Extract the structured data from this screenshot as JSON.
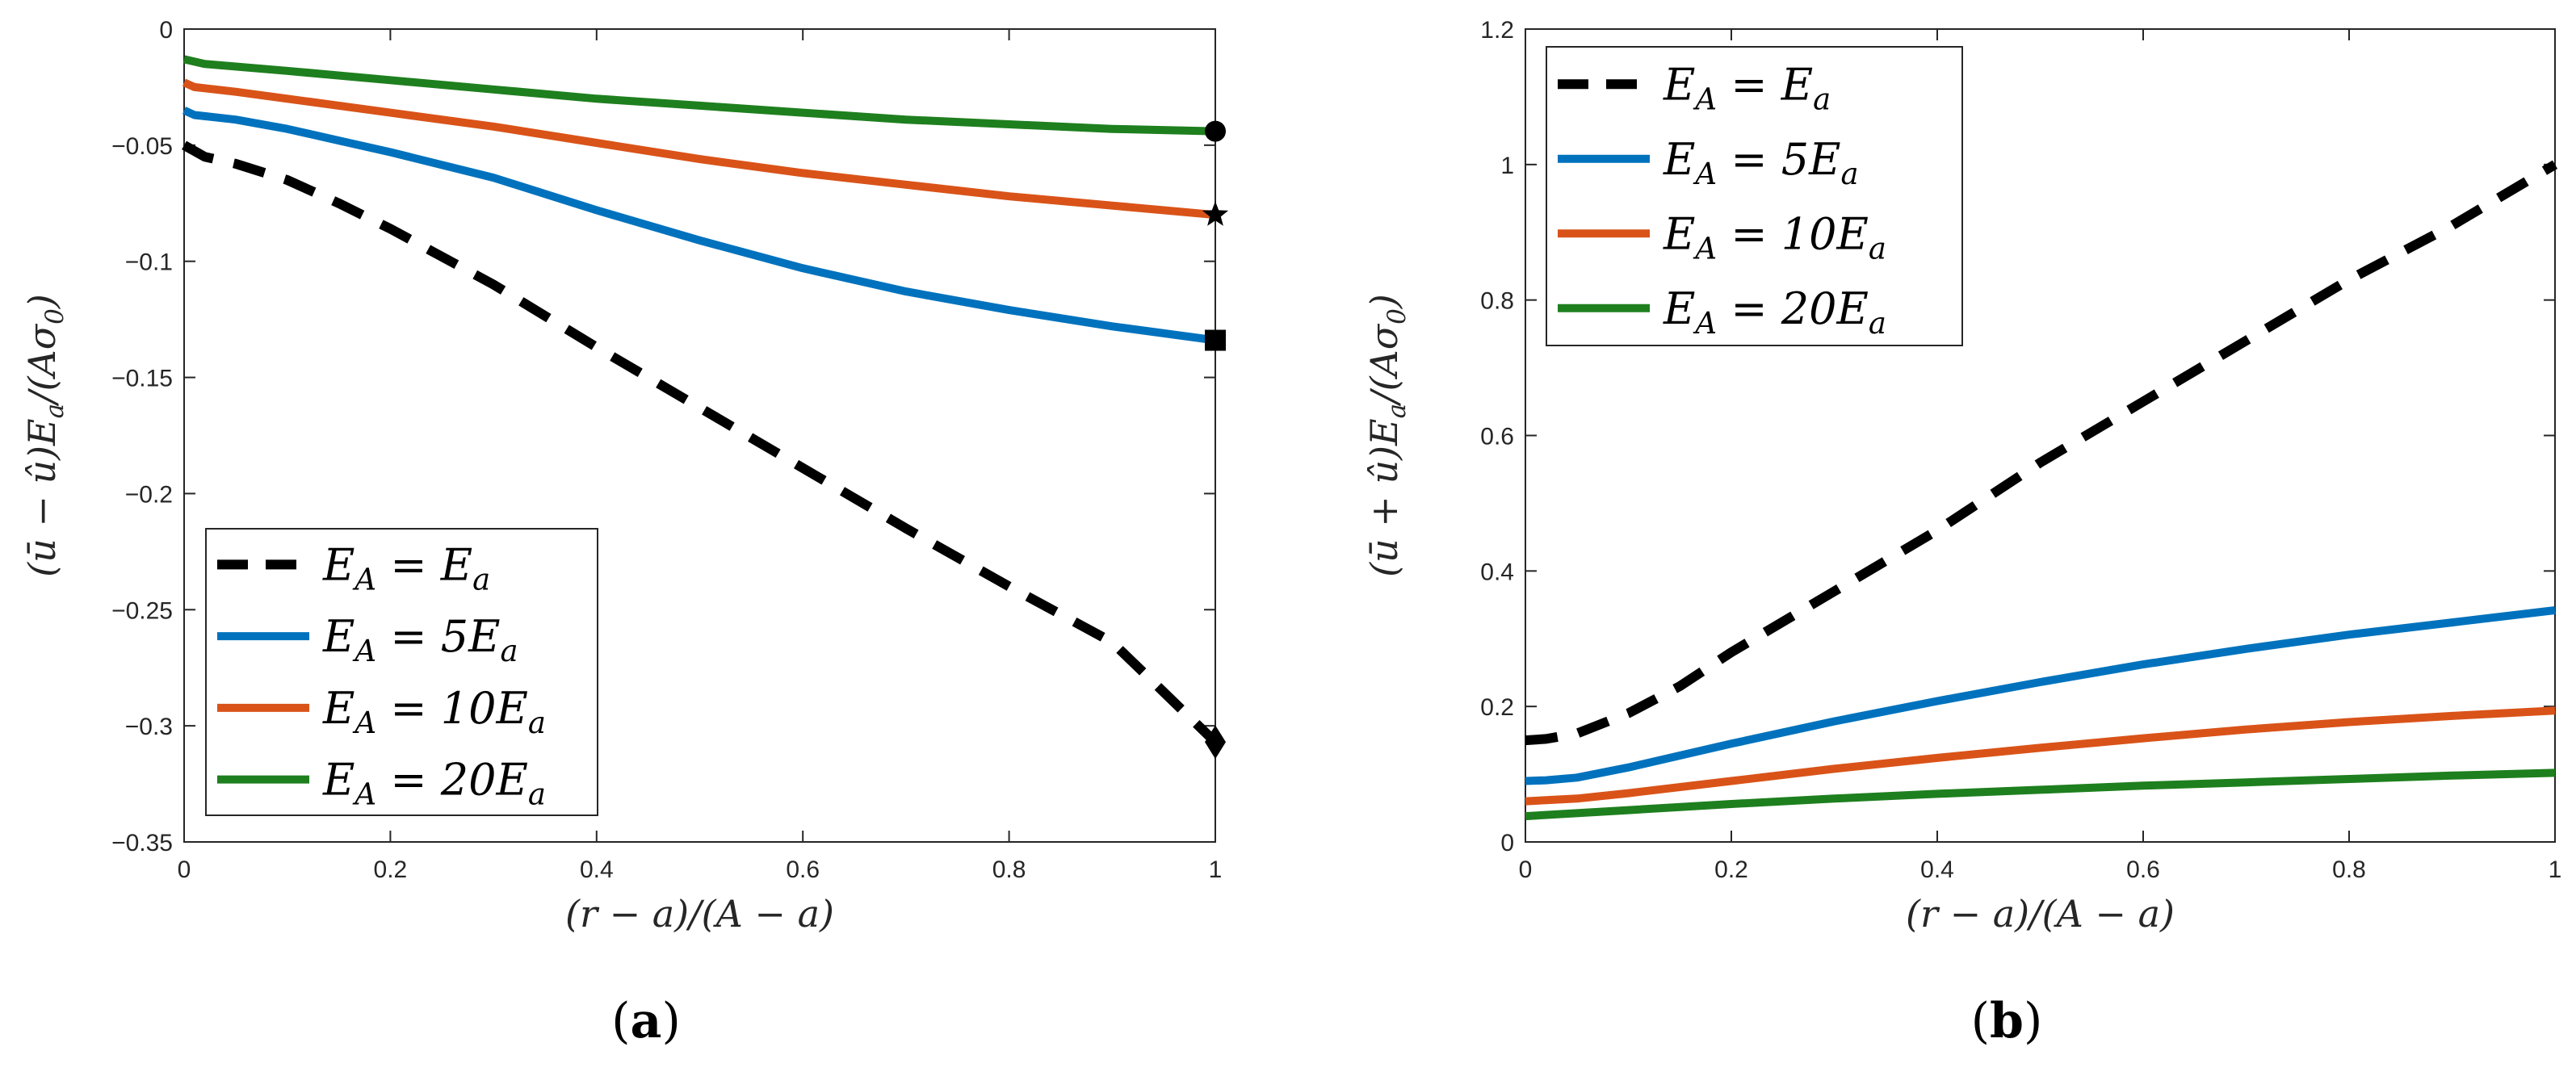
{
  "colors": {
    "black": "#000000",
    "blue": "#0072BD",
    "orange": "#D95319",
    "green": "#1E7F1E",
    "axis": "#262626"
  },
  "chart_data": [
    {
      "type": "line",
      "panel_label": "a",
      "xlabel": "(r − a)/(A − a)",
      "ylabel": "(ū − û)E_a/(Aσ_0)",
      "xlim": [
        0,
        1
      ],
      "ylim": [
        -0.35,
        0
      ],
      "xticks": [
        0,
        0.2,
        0.4,
        0.6,
        0.8,
        1
      ],
      "xtick_labels": [
        "0",
        "0.2",
        "0.4",
        "0.6",
        "0.8",
        "1"
      ],
      "yticks": [
        0,
        -0.05,
        -0.1,
        -0.15,
        -0.2,
        -0.25,
        -0.3,
        -0.35
      ],
      "ytick_labels": [
        "0",
        "−0.05",
        "−0.1",
        "−0.15",
        "−0.2",
        "−0.25",
        "−0.3",
        "−0.35"
      ],
      "grid": false,
      "legend_position": "bottom-left",
      "series": [
        {
          "name": "E_A = E_a",
          "color_key": "black",
          "style": "dashed",
          "end_marker": "diamond",
          "x": [
            0,
            0.02,
            0.05,
            0.1,
            0.15,
            0.2,
            0.3,
            0.4,
            0.5,
            0.6,
            0.7,
            0.8,
            0.9,
            1.0
          ],
          "y": [
            -0.05,
            -0.055,
            -0.058,
            -0.065,
            -0.075,
            -0.086,
            -0.11,
            -0.137,
            -0.163,
            -0.189,
            -0.215,
            -0.24,
            -0.264,
            -0.307
          ]
        },
        {
          "name": "E_A = 5E_a",
          "color_key": "blue",
          "style": "solid",
          "end_marker": "square",
          "x": [
            0,
            0.01,
            0.03,
            0.05,
            0.1,
            0.15,
            0.2,
            0.3,
            0.4,
            0.5,
            0.6,
            0.7,
            0.8,
            0.9,
            1.0
          ],
          "y": [
            -0.035,
            -0.037,
            -0.038,
            -0.039,
            -0.043,
            -0.048,
            -0.053,
            -0.064,
            -0.078,
            -0.091,
            -0.103,
            -0.113,
            -0.121,
            -0.128,
            -0.134
          ]
        },
        {
          "name": "E_A = 10E_a",
          "color_key": "orange",
          "style": "solid",
          "end_marker": "star",
          "x": [
            0,
            0.01,
            0.05,
            0.1,
            0.2,
            0.3,
            0.4,
            0.5,
            0.6,
            0.7,
            0.8,
            0.9,
            1.0
          ],
          "y": [
            -0.023,
            -0.025,
            -0.027,
            -0.03,
            -0.036,
            -0.042,
            -0.049,
            -0.056,
            -0.062,
            -0.067,
            -0.072,
            -0.076,
            -0.08
          ]
        },
        {
          "name": "E_A = 20E_a",
          "color_key": "green",
          "style": "solid",
          "end_marker": "circle",
          "x": [
            0,
            0.02,
            0.1,
            0.2,
            0.3,
            0.4,
            0.5,
            0.6,
            0.7,
            0.8,
            0.9,
            1.0
          ],
          "y": [
            -0.013,
            -0.015,
            -0.018,
            -0.022,
            -0.026,
            -0.03,
            -0.033,
            -0.036,
            -0.039,
            -0.041,
            -0.043,
            -0.044
          ]
        }
      ]
    },
    {
      "type": "line",
      "panel_label": "b",
      "xlabel": "(r − a)/(A − a)",
      "ylabel": "(ū + û)E_a/(Aσ_0)",
      "xlim": [
        0,
        1
      ],
      "ylim": [
        0,
        1.2
      ],
      "xticks": [
        0,
        0.2,
        0.4,
        0.6,
        0.8,
        1
      ],
      "xtick_labels": [
        "0",
        "0.2",
        "0.4",
        "0.6",
        "0.8",
        "1"
      ],
      "yticks": [
        0,
        0.2,
        0.4,
        0.6,
        0.8,
        1,
        1.2
      ],
      "ytick_labels": [
        "0",
        "0.2",
        "0.4",
        "0.6",
        "0.8",
        "1",
        "1.2"
      ],
      "grid": false,
      "legend_position": "top-left",
      "series": [
        {
          "name": "E_A = E_a",
          "color_key": "black",
          "style": "dashed",
          "x": [
            0,
            0.02,
            0.05,
            0.1,
            0.15,
            0.2,
            0.3,
            0.4,
            0.5,
            0.6,
            0.7,
            0.8,
            0.9,
            1.0
          ],
          "y": [
            0.15,
            0.152,
            0.16,
            0.19,
            0.23,
            0.28,
            0.37,
            0.46,
            0.56,
            0.65,
            0.74,
            0.83,
            0.91,
            1.0
          ]
        },
        {
          "name": "E_A = 5E_a",
          "color_key": "blue",
          "style": "solid",
          "x": [
            0,
            0.02,
            0.05,
            0.1,
            0.2,
            0.3,
            0.4,
            0.5,
            0.6,
            0.7,
            0.8,
            0.9,
            1.0
          ],
          "y": [
            0.09,
            0.091,
            0.095,
            0.11,
            0.145,
            0.178,
            0.208,
            0.236,
            0.262,
            0.285,
            0.306,
            0.324,
            0.342
          ]
        },
        {
          "name": "E_A = 10E_a",
          "color_key": "orange",
          "style": "solid",
          "x": [
            0,
            0.05,
            0.1,
            0.2,
            0.3,
            0.4,
            0.5,
            0.6,
            0.7,
            0.8,
            0.9,
            1.0
          ],
          "y": [
            0.06,
            0.064,
            0.072,
            0.09,
            0.108,
            0.124,
            0.139,
            0.153,
            0.166,
            0.177,
            0.186,
            0.194
          ]
        },
        {
          "name": "E_A = 20E_a",
          "color_key": "green",
          "style": "solid",
          "x": [
            0,
            0.1,
            0.2,
            0.3,
            0.4,
            0.5,
            0.6,
            0.7,
            0.8,
            0.9,
            1.0
          ],
          "y": [
            0.038,
            0.047,
            0.056,
            0.064,
            0.071,
            0.077,
            0.083,
            0.088,
            0.093,
            0.098,
            0.102
          ]
        }
      ]
    }
  ]
}
